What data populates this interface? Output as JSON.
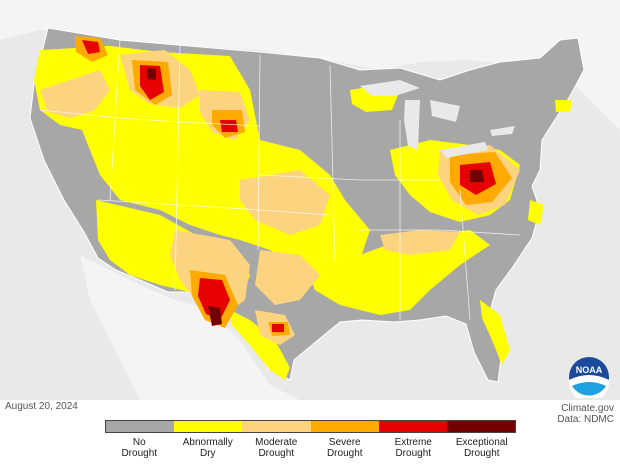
{
  "date": "August 20, 2024",
  "credits": {
    "source": "Climate.gov",
    "data": "Data: NDMC"
  },
  "logo_text": "NOAA",
  "legend": [
    {
      "label": "No\nDrought",
      "color": "#a7a7a7"
    },
    {
      "label": "Abnormally\nDry",
      "color": "#ffff00"
    },
    {
      "label": "Moderate\nDrought",
      "color": "#fcd37f"
    },
    {
      "label": "Severe\nDrought",
      "color": "#ffaa00"
    },
    {
      "label": "Extreme\nDrought",
      "color": "#e60000"
    },
    {
      "label": "Exceptional\nDrought",
      "color": "#730000"
    }
  ]
}
